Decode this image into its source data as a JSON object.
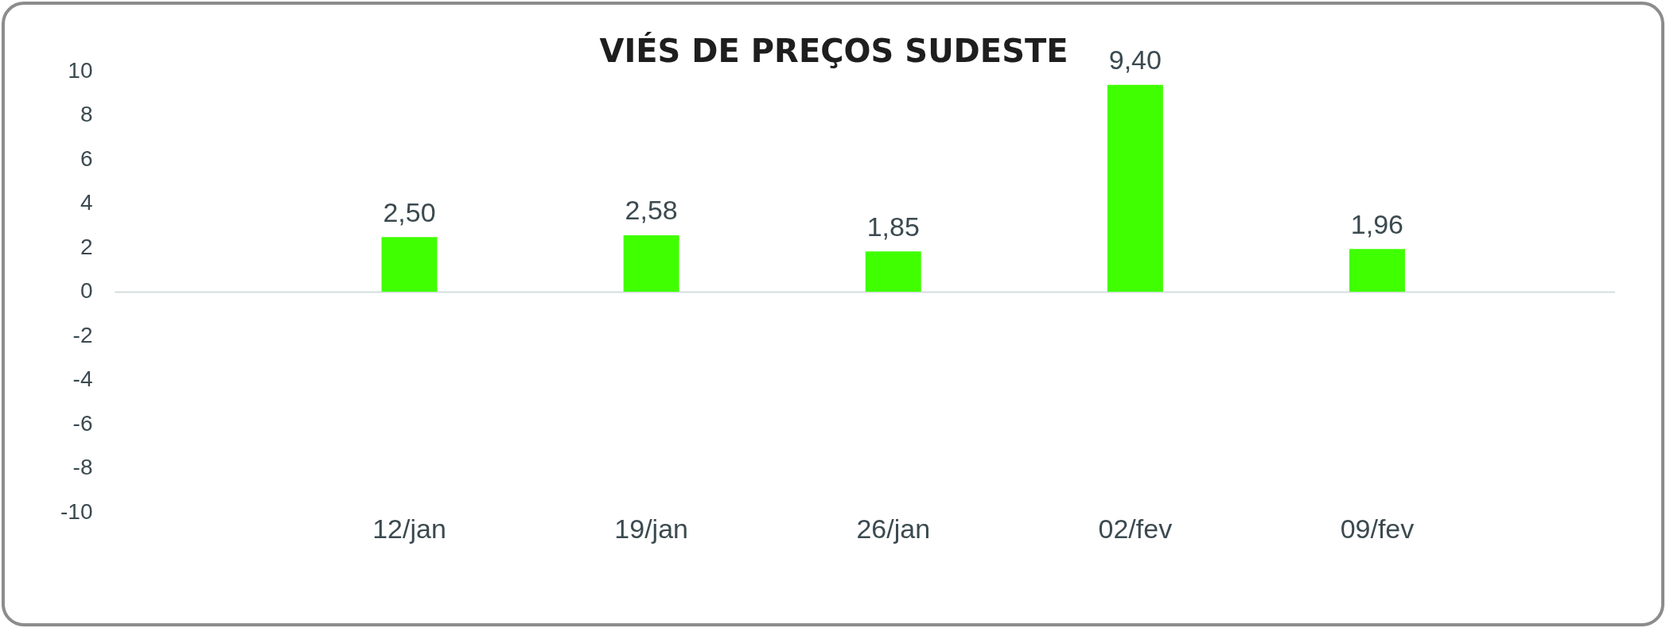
{
  "chart_data": {
    "type": "bar",
    "title": "VIÉS DE PREÇOS SUDESTE",
    "categories": [
      "12/jan",
      "19/jan",
      "26/jan",
      "02/fev",
      "09/fev"
    ],
    "values": [
      2.5,
      2.58,
      1.85,
      9.4,
      1.96
    ],
    "color": "#40ff00",
    "value_labels": [
      "2,50",
      "2,58",
      "1,85",
      "9,40",
      "1,96"
    ],
    "ylim": [
      -10,
      10
    ],
    "yticks": [
      -10,
      -8,
      -6,
      -4,
      -2,
      0,
      2,
      4,
      6,
      8,
      10
    ],
    "ref_lines": [
      {
        "axis": "y",
        "value": 0,
        "color": "#d3dedd"
      }
    ],
    "grid": false,
    "legend": false
  }
}
